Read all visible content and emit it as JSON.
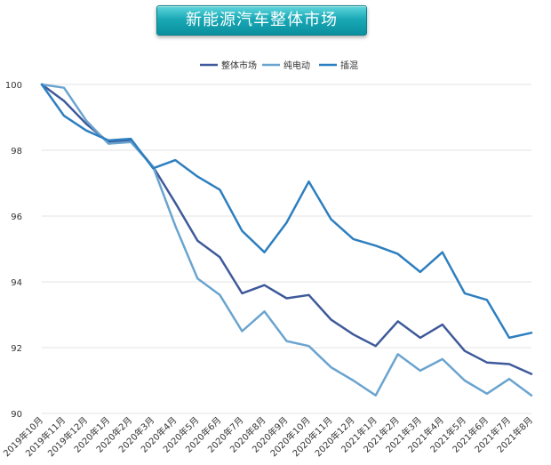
{
  "chart_data": {
    "type": "line",
    "title": "新能源汽车整体市场",
    "categories": [
      "2019年10月",
      "2019年11月",
      "2019年12月",
      "2020年1月",
      "2020年2月",
      "2020年3月",
      "2020年4月",
      "2020年5月",
      "2020年6月",
      "2020年7月",
      "2020年8月",
      "2020年9月",
      "2020年10月",
      "2020年11月",
      "2020年12月",
      "2021年1月",
      "2021年2月",
      "2021年3月",
      "2021年4月",
      "2021年5月",
      "2021年6月",
      "2021年7月",
      "2021年8月"
    ],
    "ylim": [
      90,
      100
    ],
    "yticks": [
      90,
      92,
      94,
      96,
      98,
      100
    ],
    "grid": true,
    "legend_position": "top",
    "series": [
      {
        "name": "整体市场",
        "color": "#3f5a9a",
        "values": [
          100,
          99.5,
          98.8,
          98.25,
          98.3,
          97.5,
          96.4,
          95.25,
          94.75,
          93.65,
          93.9,
          93.5,
          93.6,
          92.85,
          92.4,
          92.05,
          92.8,
          92.3,
          92.7,
          91.9,
          91.55,
          91.5,
          91.2
        ]
      },
      {
        "name": "纯电动",
        "color": "#6aa4cf",
        "values": [
          100,
          99.9,
          98.9,
          98.2,
          98.25,
          97.5,
          95.7,
          94.1,
          93.6,
          92.5,
          93.1,
          92.2,
          92.05,
          91.4,
          91.0,
          90.55,
          91.8,
          91.3,
          91.65,
          91.0,
          90.6,
          91.05,
          90.55
        ]
      },
      {
        "name": "插混",
        "color": "#2e7fbf",
        "values": [
          100,
          99.05,
          98.6,
          98.3,
          98.35,
          97.45,
          97.7,
          97.2,
          96.8,
          95.55,
          94.9,
          95.8,
          97.05,
          95.9,
          95.3,
          95.1,
          94.85,
          94.3,
          94.9,
          93.65,
          93.45,
          92.3,
          92.45
        ]
      }
    ]
  }
}
